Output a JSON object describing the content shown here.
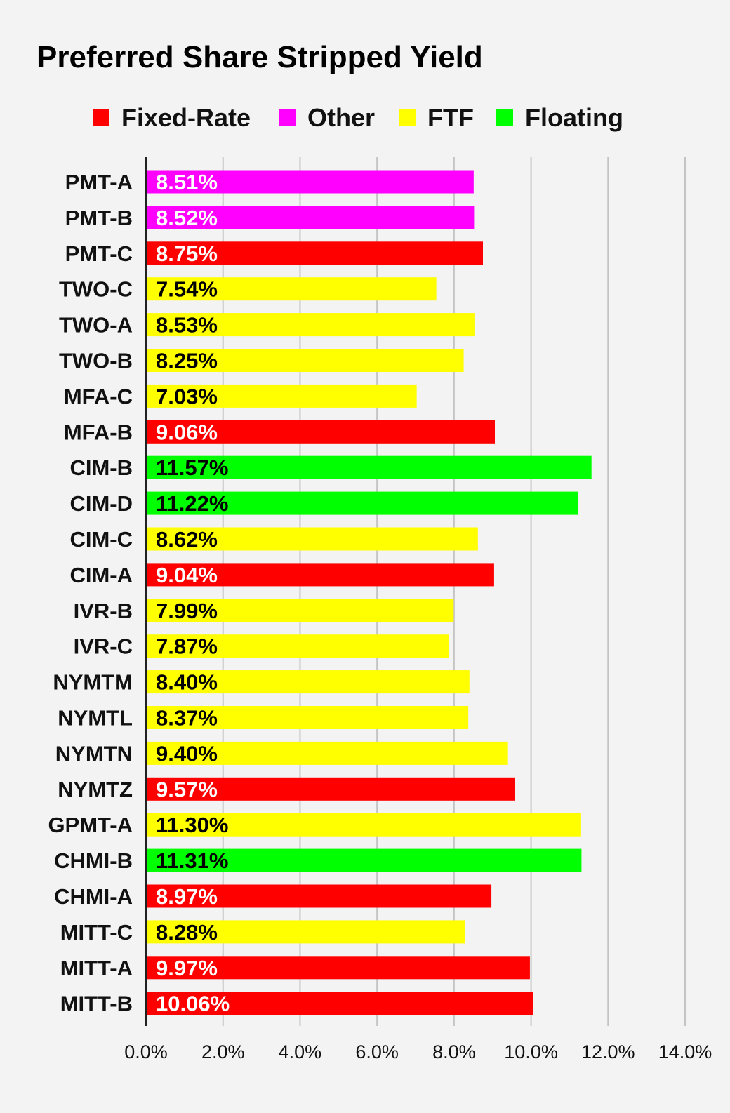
{
  "chart_data": {
    "type": "bar",
    "orientation": "horizontal",
    "title": "Preferred Share Stripped Yield",
    "xlim": [
      0,
      14
    ],
    "x_ticks": [
      "0.0%",
      "2.0%",
      "4.0%",
      "6.0%",
      "8.0%",
      "10.0%",
      "12.0%",
      "14.0%"
    ],
    "grid": true,
    "legend_position": "top",
    "legend": [
      {
        "name": "Fixed-Rate",
        "color": "#ff0000"
      },
      {
        "name": "Other",
        "color": "#ff00ff"
      },
      {
        "name": "FTF",
        "color": "#ffff00"
      },
      {
        "name": "Floating",
        "color": "#00ff00"
      }
    ],
    "categories": [
      "PMT-A",
      "PMT-B",
      "PMT-C",
      "TWO-C",
      "TWO-A",
      "TWO-B",
      "MFA-C",
      "MFA-B",
      "CIM-B",
      "CIM-D",
      "CIM-C",
      "CIM-A",
      "IVR-B",
      "IVR-C",
      "NYMTM",
      "NYMTL",
      "NYMTN",
      "NYMTZ",
      "GPMT-A",
      "CHMI-B",
      "CHMI-A",
      "MITT-C",
      "MITT-A",
      "MITT-B"
    ],
    "values": [
      8.51,
      8.52,
      8.75,
      7.54,
      8.53,
      8.25,
      7.03,
      9.06,
      11.57,
      11.22,
      8.62,
      9.04,
      7.99,
      7.87,
      8.4,
      8.37,
      9.4,
      9.57,
      11.3,
      11.31,
      8.97,
      8.28,
      9.97,
      10.06
    ],
    "value_labels": [
      "8.51%",
      "8.52%",
      "8.75%",
      "7.54%",
      "8.53%",
      "8.25%",
      "7.03%",
      "9.06%",
      "11.57%",
      "11.22%",
      "8.62%",
      "9.04%",
      "7.99%",
      "7.87%",
      "8.40%",
      "8.37%",
      "9.40%",
      "9.57%",
      "11.30%",
      "11.31%",
      "8.97%",
      "8.28%",
      "9.97%",
      "10.06%"
    ],
    "types": [
      "Other",
      "Other",
      "Fixed-Rate",
      "FTF",
      "FTF",
      "FTF",
      "FTF",
      "Fixed-Rate",
      "Floating",
      "Floating",
      "FTF",
      "Fixed-Rate",
      "FTF",
      "FTF",
      "FTF",
      "FTF",
      "FTF",
      "Fixed-Rate",
      "FTF",
      "Floating",
      "Fixed-Rate",
      "FTF",
      "Fixed-Rate",
      "Fixed-Rate"
    ]
  }
}
